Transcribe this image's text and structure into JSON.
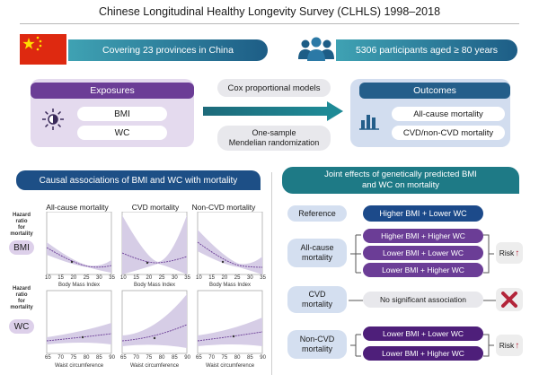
{
  "title": "Chinese Longitudinal Healthy Longevity Survey (CLHLS) 1998–2018",
  "banner": {
    "provinces": "Covering 23 provinces in China",
    "participants": "5306 participants aged ≥ 80 years"
  },
  "exposures": {
    "header": "Exposures",
    "items": [
      "BMI",
      "WC"
    ]
  },
  "methods": {
    "cox": "Cox proportional models",
    "mr_line1": "One-sample",
    "mr_line2": "Mendelian randomization"
  },
  "outcomes": {
    "header": "Outcomes",
    "items": [
      "All-cause mortality",
      "CVD/non-CVD mortality"
    ]
  },
  "causal": {
    "header": "Causal associations of BMI and WC with mortality",
    "columns": [
      "All-cause mortality",
      "CVD mortality",
      "Non-CVD mortality"
    ],
    "ylabel_lines": [
      "Hazard",
      "ratio",
      "for",
      "mortality"
    ],
    "rows": [
      {
        "label": "BMI",
        "xlabel": "Body Mass Index",
        "xticks": [
          "10",
          "15",
          "20",
          "25",
          "30",
          "35"
        ]
      },
      {
        "label": "WC",
        "xlabel": "Waist circumference",
        "xticks": [
          "65",
          "70",
          "75",
          "80",
          "85",
          "90"
        ]
      }
    ]
  },
  "joint": {
    "header_line1": "Joint effects of genetically predicted BMI",
    "header_line2": "and WC on mortality",
    "reference": {
      "label": "Reference",
      "value": "Higher BMI + Lower WC"
    },
    "allcause": {
      "label_line1": "All-cause",
      "label_line2": "mortality",
      "items": [
        "Higher BMI + Higher WC",
        "Lower BMI + Lower WC",
        "Lower BMI + Higher WC"
      ],
      "risk": "Risk"
    },
    "cvd": {
      "label_line1": "CVD",
      "label_line2": "mortality",
      "value": "No significant association"
    },
    "noncvd": {
      "label_line1": "Non-CVD",
      "label_line2": "mortality",
      "items": [
        "Lower BMI + Lower WC",
        "Lower BMI + Higher WC"
      ],
      "risk": "Risk"
    }
  },
  "colors": {
    "accent_blue": "#245e8a",
    "purple": "#6b3d96",
    "teal": "#1e7a86",
    "red_x": "#b3253a"
  }
}
